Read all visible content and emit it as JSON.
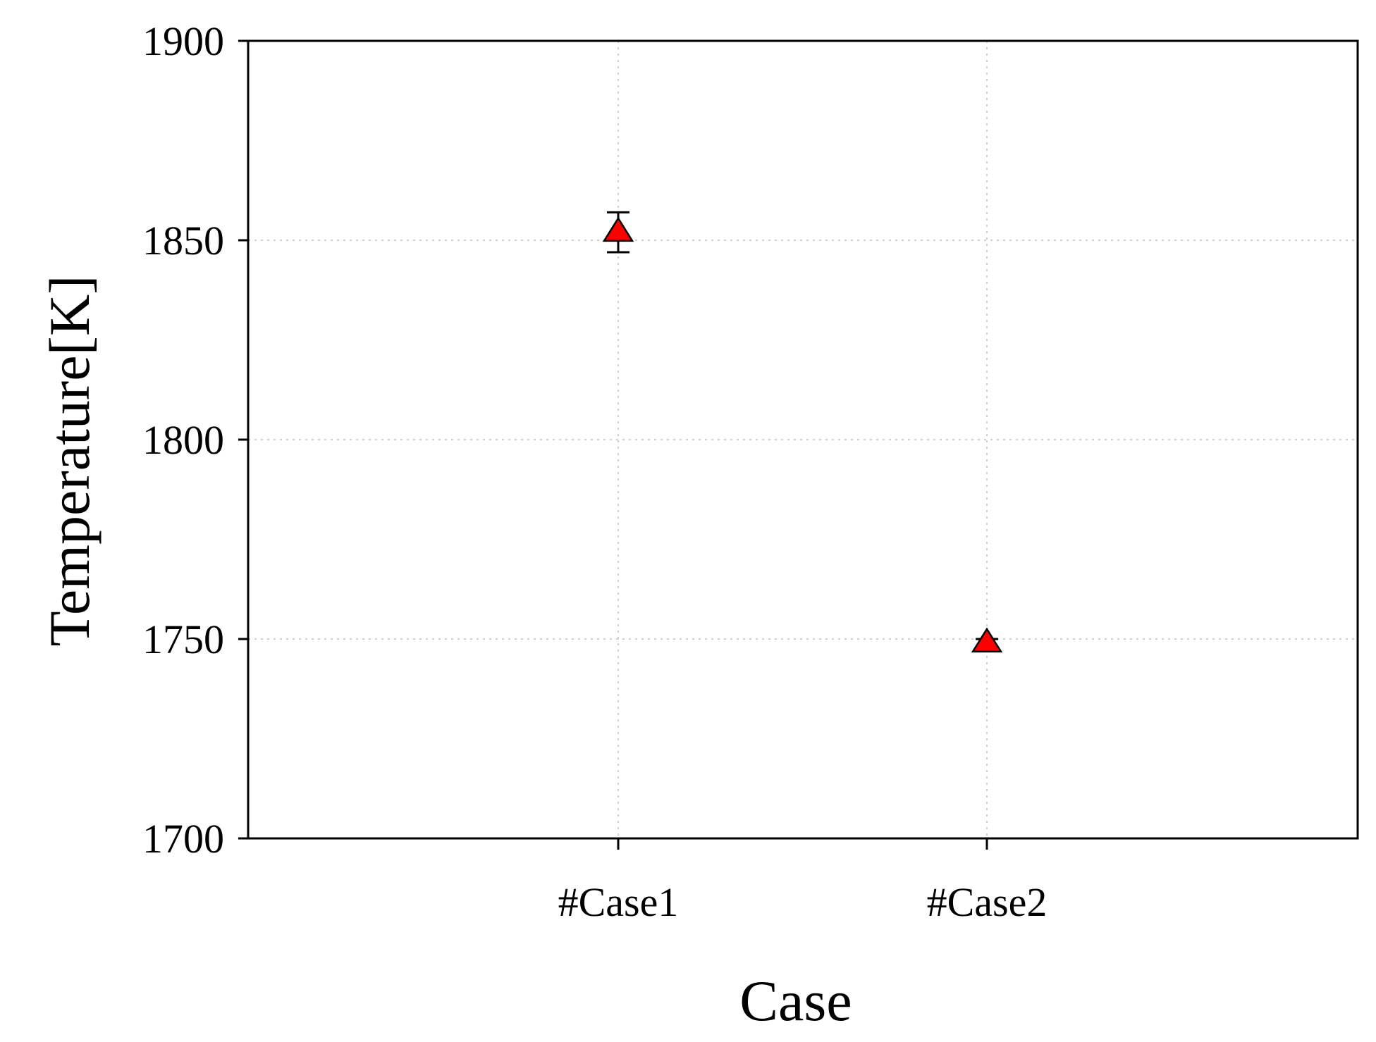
{
  "chart_data": {
    "type": "scatter",
    "title": "",
    "xlabel": "Case",
    "ylabel": "Temperature[K]",
    "categories": [
      "#Case1",
      "#Case2"
    ],
    "ylim": [
      1700,
      1900
    ],
    "yticks": [
      "1700",
      "1750",
      "1800",
      "1850",
      "1900"
    ],
    "grid": true,
    "series": [
      {
        "marker": "triangle",
        "values": [
          1852,
          1749
        ],
        "error": [
          5,
          1
        ]
      }
    ],
    "colors": {
      "marker_fill": "#ff0000",
      "marker_stroke": "#000000",
      "grid": "#bdbdbd",
      "axis": "#000000"
    }
  }
}
